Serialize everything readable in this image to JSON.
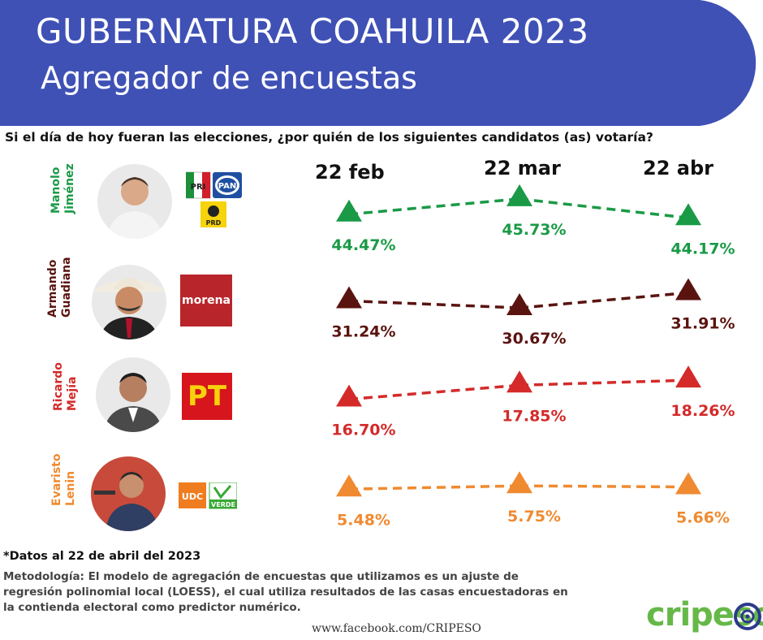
{
  "header": {
    "title": "GUBERNATURA COAHUILA 2023",
    "subtitle": "Agregador de encuestas",
    "color": "#3f51b5"
  },
  "question": "Si el día de hoy fueran las elecciones, ¿por quién de los siguientes candidatos (as) votaría?",
  "chart_data": {
    "type": "line",
    "x": [
      "22 feb",
      "22 mar",
      "22 abr"
    ],
    "series": [
      {
        "name": "Manolo Jiménez",
        "name_lines": [
          "Manolo",
          "Jiménez"
        ],
        "values": [
          44.47,
          45.73,
          44.17
        ],
        "labels": [
          "44.47%",
          "45.73%",
          "44.17%"
        ],
        "color": "#1a9a46",
        "parties": [
          "PRI",
          "PAN",
          "PRD"
        ]
      },
      {
        "name": "Armando Guadiana",
        "name_lines": [
          "Armando",
          "Guadiana"
        ],
        "values": [
          31.24,
          30.67,
          31.91
        ],
        "labels": [
          "31.24%",
          "30.67%",
          "31.91%"
        ],
        "color": "#5a1410",
        "parties": [
          "morena"
        ]
      },
      {
        "name": "Ricardo Mejía",
        "name_lines": [
          "Ricardo",
          "Mejía"
        ],
        "values": [
          16.7,
          17.85,
          18.26
        ],
        "labels": [
          "16.70%",
          "17.85%",
          "18.26%"
        ],
        "color": "#d42a2a",
        "parties": [
          "PT"
        ]
      },
      {
        "name": "Evaristo Lenin",
        "name_lines": [
          "Evaristo",
          "Lenin"
        ],
        "values": [
          5.48,
          5.75,
          5.66
        ],
        "labels": [
          "5.48%",
          "5.75%",
          "5.66%"
        ],
        "color": "#f08a30",
        "parties": [
          "UDC",
          "VERDE"
        ]
      }
    ],
    "grid": false,
    "legend": "none"
  },
  "footnote": "*Datos al 22 de abril del 2023",
  "methodology": "Metodología: El modelo de agregación de encuestas que utilizamos es un ajuste de regresión polinomial local (LOESS), el cual utiliza resultados de las casas encuestadoras en la contienda electoral como predictor numérico.",
  "facebook": "www.facebook.com/CRIPESO",
  "brand": "cripeso"
}
